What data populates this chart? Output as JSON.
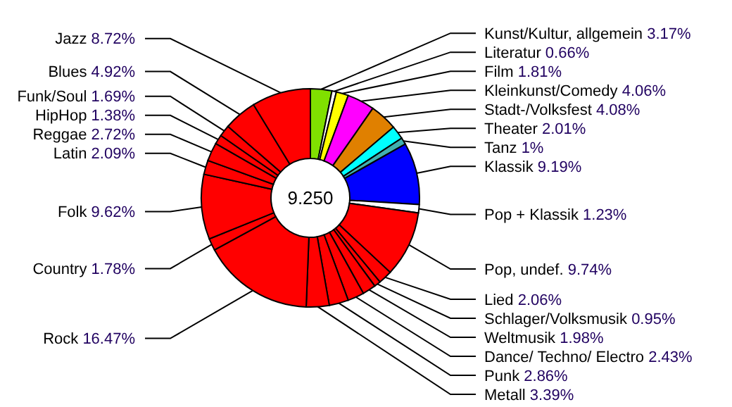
{
  "chart_data": {
    "type": "donut",
    "categories": [
      "Kunst/Kultur, allgemein",
      "Literatur",
      "Film",
      "Kleinkunst/Comedy",
      "Stadt-/Volksfest",
      "Theater",
      "Tanz",
      "Klassik",
      "Pop + Klassik",
      "Pop, undef.",
      "Lied",
      "Schlager/Volksmusik",
      "Weltmusik",
      "Dance/ Techno/ Electro",
      "Punk",
      "Metall",
      "Rock",
      "Country",
      "Folk",
      "Latin",
      "Reggae",
      "HipHop",
      "Funk/Soul",
      "Blues",
      "Jazz"
    ],
    "values": [
      3.17,
      0.66,
      1.81,
      4.06,
      4.08,
      2.01,
      1,
      9.19,
      1.23,
      9.74,
      2.06,
      0.95,
      1.98,
      2.43,
      2.86,
      3.39,
      16.47,
      1.78,
      9.62,
      2.09,
      2.72,
      1.38,
      1.69,
      4.92,
      8.72
    ],
    "colors": [
      "#80e000",
      "#ffffff",
      "#ffff00",
      "#ff00ff",
      "#e08000",
      "#00ffff",
      "#40b0b0",
      "#0000ff",
      "#ffffff",
      "#ff0000",
      "#ff0000",
      "#ff0000",
      "#ff0000",
      "#ff0000",
      "#ff0000",
      "#ff0000",
      "#ff0000",
      "#ff0000",
      "#ff0000",
      "#ff0000",
      "#ff0000",
      "#ff0000",
      "#ff0000",
      "#ff0000",
      "#ff0000"
    ],
    "value_labels": [
      "3.17%",
      "0.66%",
      "1.81%",
      "4.06%",
      "4.08%",
      "2.01%",
      "1%",
      "9.19%",
      "1.23%",
      "9.74%",
      "2.06%",
      "0.95%",
      "1.98%",
      "2.43%",
      "2.86%",
      "3.39%",
      "16.47%",
      "1.78%",
      "9.62%",
      "2.09%",
      "2.72%",
      "1.38%",
      "1.69%",
      "4.92%",
      "8.72%"
    ],
    "annotations": [
      "9.250"
    ]
  }
}
